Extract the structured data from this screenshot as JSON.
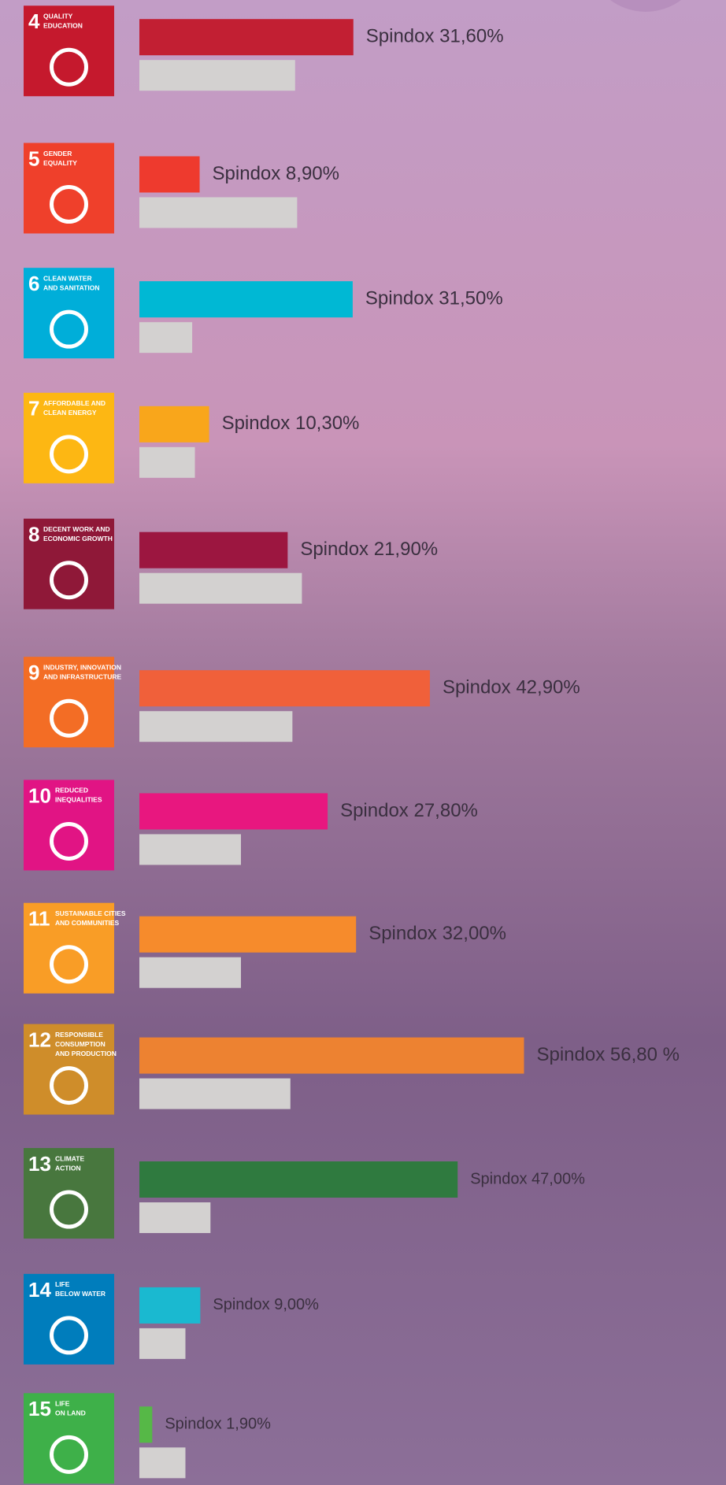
{
  "chart_data": {
    "type": "bar",
    "orientation": "horizontal",
    "goals": [
      {
        "number": "4",
        "lines": [
          "QUALITY",
          "EDUCATION"
        ],
        "color": "#c5192d"
      },
      {
        "number": "5",
        "lines": [
          "GENDER",
          "EQUALITY"
        ],
        "color": "#ef402b"
      },
      {
        "number": "6",
        "lines": [
          "CLEAN WATER",
          "AND SANITATION"
        ],
        "color": "#00aed9"
      },
      {
        "number": "7",
        "lines": [
          "AFFORDABLE AND",
          "CLEAN ENERGY"
        ],
        "color": "#fdb713"
      },
      {
        "number": "8",
        "lines": [
          "DECENT WORK AND",
          "ECONOMIC GROWTH"
        ],
        "color": "#8f1838"
      },
      {
        "number": "9",
        "lines": [
          "INDUSTRY, INNOVATION",
          "AND INFRASTRUCTURE"
        ],
        "color": "#f36d25"
      },
      {
        "number": "10",
        "lines": [
          "REDUCED",
          "INEQUALITIES"
        ],
        "color": "#e11484"
      },
      {
        "number": "11",
        "lines": [
          "SUSTAINABLE CITIES",
          "AND COMMUNITIES"
        ],
        "color": "#f99d26"
      },
      {
        "number": "12",
        "lines": [
          "RESPONSIBLE",
          "CONSUMPTION",
          "AND PRODUCTION"
        ],
        "color": "#cf8d2a"
      },
      {
        "number": "13",
        "lines": [
          "CLIMATE",
          "ACTION"
        ],
        "color": "#48773e"
      },
      {
        "number": "14",
        "lines": [
          "LIFE",
          "BELOW WATER"
        ],
        "color": "#007dbc"
      },
      {
        "number": "15",
        "lines": [
          "LIFE",
          "ON LAND"
        ],
        "color": "#3eb049"
      }
    ],
    "series": [
      {
        "values": [
          31.6,
          8.9,
          31.5,
          10.3,
          21.9,
          42.9,
          27.8,
          32.0,
          56.8,
          47.0,
          9.0,
          1.9
        ],
        "value_labels": [
          "Spindox 31,60%",
          "Spindox 8,90%",
          "Spindox 31,50%",
          "Spindox 10,30%",
          "Spindox 21,90%",
          "Spindox 42,90%",
          "Spindox 27,80%",
          "Spindox 32,00%",
          "Spindox 56,80 %",
          "Spindox 47,00%",
          "Spindox 9,00%",
          "Spindox 1,90%"
        ],
        "colors": [
          "#c21f33",
          "#ee3a2e",
          "#00b8d4",
          "#f9a61b",
          "#9c1640",
          "#f0603a",
          "#e8177f",
          "#f68b2c",
          "#ed8231",
          "#2f7a3f",
          "#1ab9d0",
          "#56b847"
        ]
      },
      {
        "values": [
          23,
          23.3,
          7.8,
          8.2,
          24,
          22.6,
          15,
          15,
          22.3,
          10.5,
          6.8,
          6.8
        ],
        "color": "#d3d1d0"
      }
    ]
  }
}
